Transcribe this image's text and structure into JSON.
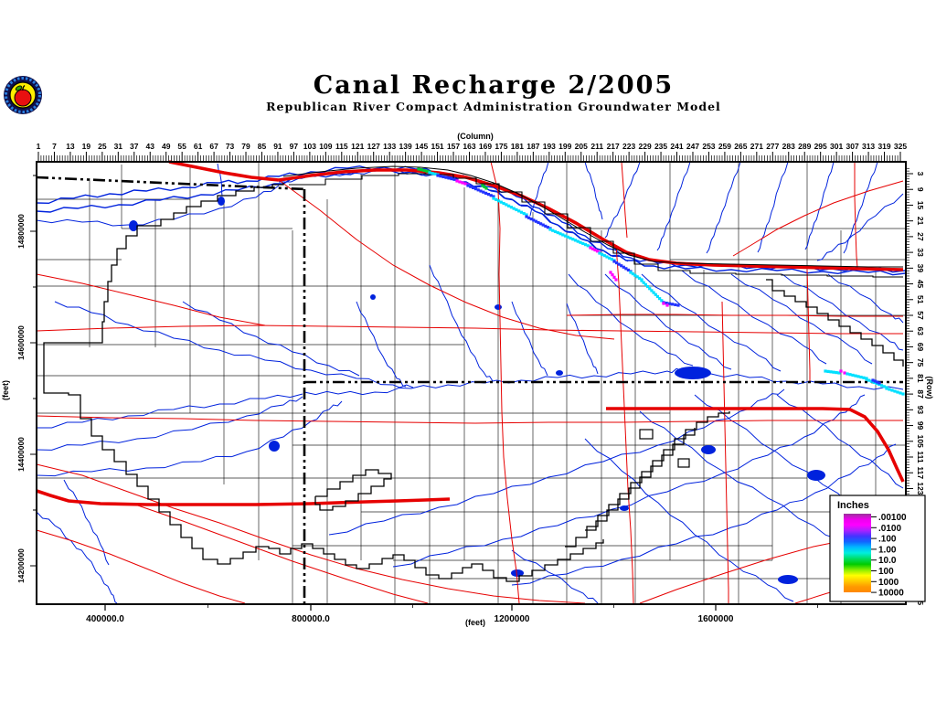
{
  "header": {
    "title": "Canal Recharge 2/2005",
    "subtitle": "Republican River Compact Administration Groundwater Model"
  },
  "axes": {
    "column": {
      "label": "(Column)",
      "ticks": [
        1,
        7,
        13,
        19,
        25,
        31,
        37,
        43,
        49,
        55,
        61,
        67,
        73,
        79,
        85,
        91,
        97,
        103,
        109,
        115,
        121,
        127,
        133,
        139,
        145,
        151,
        157,
        163,
        169,
        175,
        181,
        187,
        193,
        199,
        205,
        211,
        217,
        223,
        229,
        235,
        241,
        247,
        253,
        259,
        265,
        271,
        277,
        283,
        289,
        295,
        301,
        307,
        313,
        319,
        325
      ],
      "minor_every": 1,
      "range": [
        1,
        325
      ]
    },
    "row": {
      "label": "(Row)",
      "ticks": [
        3,
        9,
        15,
        21,
        27,
        33,
        39,
        45,
        51,
        57,
        63,
        69,
        75,
        81,
        87,
        93,
        99,
        105,
        111,
        117,
        123,
        129,
        135,
        141,
        147,
        153,
        159,
        165
      ],
      "minor_every": 1,
      "range": [
        1,
        165
      ]
    },
    "x_feet": {
      "label": "(feet)",
      "ticks": [
        "400000.0",
        "800000.0",
        "1200000",
        "1600000"
      ]
    },
    "y_feet": {
      "label": "(feet)",
      "ticks": [
        "14800000",
        "14600000",
        "14400000",
        "14200000"
      ]
    }
  },
  "legend": {
    "title": "Inches",
    "entries": [
      {
        "label": ".00100"
      },
      {
        "label": ".0100"
      },
      {
        "label": ".100"
      },
      {
        "label": "1.00"
      },
      {
        "label": "10.0"
      },
      {
        "label": "100"
      },
      {
        "label": "1000"
      },
      {
        "label": "10000"
      }
    ],
    "gradient": [
      "#993399",
      "#ee00ee",
      "#ff00ff",
      "#aa22ff",
      "#4433ff",
      "#1166ff",
      "#00bbff",
      "#00eedd",
      "#00dd66",
      "#00cc00",
      "#88ee00",
      "#ffff00",
      "#ffcc00",
      "#ff9900",
      "#ff8800"
    ]
  },
  "layers": {
    "river_color": "#0022dd",
    "lake_color": "#0022dd",
    "road_color": "#e60000",
    "highway_color": "#e60000",
    "county_color": "#111111",
    "state_boundary_color": "#000000",
    "model_boundary_color": "#000000",
    "frame_color": "#000000",
    "cell_colors": {
      "cyan": "#00e0ff",
      "blue": "#2233ff",
      "magenta": "#ff00ff",
      "green": "#00c832",
      "purple": "#8833cc"
    }
  },
  "logo": {
    "name": "rrca-apple-seal"
  }
}
